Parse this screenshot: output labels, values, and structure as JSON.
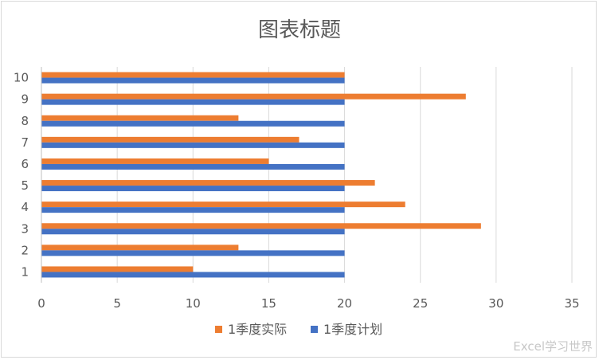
{
  "chart_data": {
    "type": "bar",
    "orientation": "horizontal",
    "title": "图表标题",
    "categories": [
      "1",
      "2",
      "3",
      "4",
      "5",
      "6",
      "7",
      "8",
      "9",
      "10"
    ],
    "series": [
      {
        "name": "1季度实际",
        "color": "#ED7D31",
        "values": [
          10,
          13,
          29,
          24,
          22,
          15,
          17,
          13,
          28,
          20
        ]
      },
      {
        "name": "1季度计划",
        "color": "#4472C4",
        "values": [
          20,
          20,
          20,
          20,
          20,
          20,
          20,
          20,
          20,
          20
        ]
      }
    ],
    "xlim": [
      0,
      35
    ],
    "xticks": [
      0,
      5,
      10,
      15,
      20,
      25,
      30,
      35
    ],
    "grid": true,
    "legend": "bottom"
  },
  "watermark": "Excel学习世界"
}
